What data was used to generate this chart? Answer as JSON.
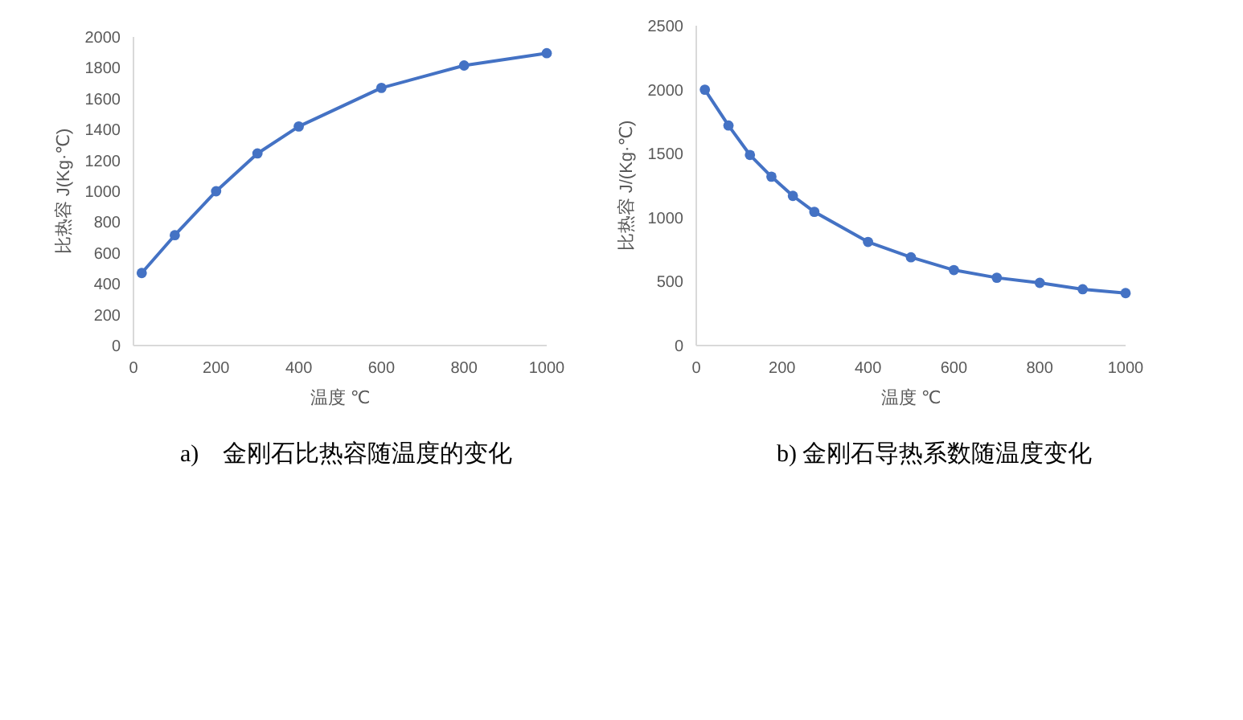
{
  "chart_data": [
    {
      "type": "line",
      "xlabel": "温度 ℃",
      "ylabel": "比热容 J(Kg·℃)",
      "annotations": [
        "a)　金刚石比热容随温度的变化"
      ],
      "x": [
        20,
        100,
        200,
        300,
        400,
        600,
        800,
        1000
      ],
      "series": [
        {
          "color": "#4472c4",
          "values": [
            470,
            715,
            1000,
            1245,
            1420,
            1670,
            1815,
            1895
          ]
        }
      ],
      "xlim": [
        0,
        1000
      ],
      "ylim": [
        0,
        2000
      ],
      "xticks": [
        0,
        200,
        400,
        600,
        800,
        1000
      ],
      "yticks": [
        0,
        200,
        400,
        600,
        800,
        1000,
        1200,
        1400,
        1600,
        1800,
        2000
      ],
      "grid": false,
      "marker": "circle",
      "line_style": "solid"
    },
    {
      "type": "line",
      "xlabel": "温度 ℃",
      "ylabel": "比热容 J/(Kg·℃)",
      "annotations": [
        "b)  金刚石导热系数随温度变化"
      ],
      "x": [
        20,
        75,
        125,
        175,
        225,
        275,
        400,
        500,
        600,
        700,
        800,
        900,
        1000
      ],
      "series": [
        {
          "color": "#4472c4",
          "values": [
            2000,
            1720,
            1490,
            1320,
            1170,
            1045,
            810,
            690,
            590,
            530,
            490,
            440,
            410
          ]
        }
      ],
      "xlim": [
        0,
        1000
      ],
      "ylim": [
        0,
        2500
      ],
      "xticks": [
        0,
        200,
        400,
        600,
        800,
        1000
      ],
      "yticks": [
        0,
        500,
        1000,
        1500,
        2000,
        2500
      ],
      "grid": false,
      "marker": "circle",
      "line_style": "solid"
    }
  ]
}
